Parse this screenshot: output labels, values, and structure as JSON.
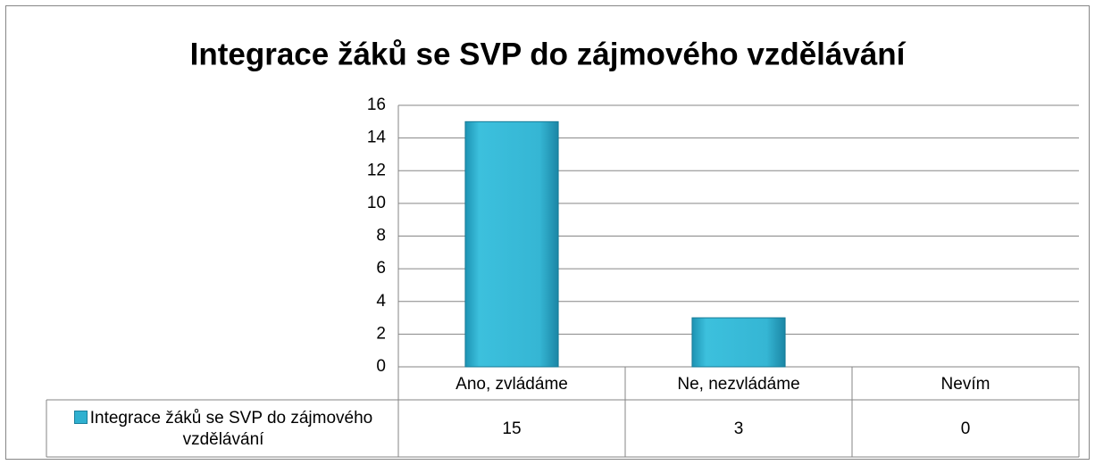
{
  "chart_data": {
    "type": "bar",
    "title": "Integrace žáků se SVP do zájmového vzdělávání",
    "categories": [
      "Ano, zvládáme",
      "Ne, nezvládáme",
      "Nevím"
    ],
    "series": [
      {
        "name": "Integrace žáků se SVP do zájmového vzdělávání",
        "color": "#2fb0d0",
        "values": [
          15,
          3,
          0
        ]
      }
    ],
    "ylim": [
      0,
      16
    ],
    "yticks": [
      0,
      2,
      4,
      6,
      8,
      10,
      12,
      14,
      16
    ],
    "grid": true,
    "data_table": true
  }
}
